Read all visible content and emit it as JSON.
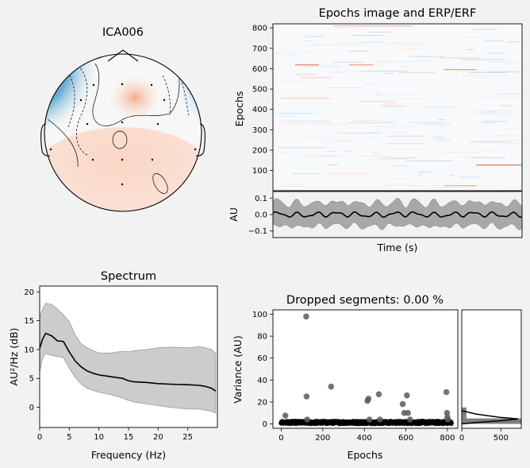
{
  "chart_data": [
    {
      "type": "heatmap",
      "panel": "topomap",
      "title": "ICA006",
      "colormap": "RdBu_r",
      "colors": {
        "negative": "#08306b",
        "positive": "#fcbba1",
        "neutral": "#f7f7f7"
      }
    },
    {
      "type": "heatmap",
      "panel": "epochs-image",
      "title": "Epochs image and ERP/ERF",
      "ylabel": "Epochs",
      "yticks": [
        "100",
        "200",
        "300",
        "400",
        "500",
        "600",
        "700",
        "800"
      ],
      "ylim": [
        1,
        820
      ],
      "grid": false
    },
    {
      "type": "line",
      "panel": "erp",
      "xlabel": "Time (s)",
      "ylabel": "AU",
      "yticks": [
        "0.1",
        "0.0",
        "−0.1"
      ],
      "ylim": [
        -0.14,
        0.14
      ],
      "series_colors": {
        "mean": "#000000",
        "band": "#8c8c8c"
      }
    },
    {
      "type": "area",
      "panel": "spectrum",
      "title": "Spectrum",
      "xlabel": "Frequency (Hz)",
      "ylabel": "AU²/Hz (dB)",
      "xticks": [
        "0",
        "5",
        "10",
        "15",
        "20",
        "25"
      ],
      "yticks": [
        "0",
        "5",
        "10",
        "15",
        "20"
      ],
      "xlim": [
        0,
        30
      ],
      "ylim": [
        -3.5,
        21
      ],
      "x": [
        0,
        0.5,
        1,
        2,
        3,
        4,
        5,
        6,
        7,
        8,
        9,
        10,
        12,
        14,
        15,
        16,
        18,
        20,
        22,
        25,
        27,
        28,
        29,
        29.7
      ],
      "mean": [
        10.2,
        11.8,
        12.8,
        12.4,
        11.5,
        11.4,
        9.6,
        8.0,
        7.0,
        6.3,
        5.9,
        5.6,
        5.3,
        5.0,
        4.6,
        4.4,
        4.3,
        4.1,
        4.0,
        3.9,
        3.8,
        3.6,
        3.3,
        2.8
      ],
      "upper": [
        15.5,
        17.0,
        18.0,
        17.8,
        17.0,
        16.0,
        14.8,
        12.5,
        11.0,
        10.3,
        9.8,
        9.4,
        9.4,
        9.7,
        9.6,
        9.8,
        10.0,
        10.3,
        10.4,
        10.3,
        10.5,
        10.3,
        10.0,
        9.4
      ],
      "lower": [
        6.2,
        8.5,
        9.3,
        9.0,
        8.8,
        8.6,
        6.8,
        5.2,
        4.0,
        3.3,
        2.9,
        2.6,
        2.2,
        1.6,
        1.2,
        0.9,
        0.6,
        0.3,
        0.0,
        -0.3,
        -0.3,
        -0.5,
        -0.7,
        -1.0
      ]
    },
    {
      "type": "scatter",
      "panel": "dropped-segments",
      "title": "Dropped segments: 0.00 %",
      "xlabel": "Epochs",
      "ylabel": "Variance (AU)",
      "xticks": [
        "0",
        "200",
        "400",
        "600",
        "800"
      ],
      "yticks": [
        "0",
        "20",
        "40",
        "60",
        "80",
        "100"
      ],
      "xlim": [
        -40,
        850
      ],
      "ylim": [
        -4,
        104
      ],
      "outliers": [
        [
          20,
          7.5
        ],
        [
          120,
          98
        ],
        [
          122,
          25
        ],
        [
          125,
          4
        ],
        [
          240,
          34
        ],
        [
          415,
          21
        ],
        [
          420,
          23
        ],
        [
          425,
          4
        ],
        [
          470,
          27
        ],
        [
          475,
          4
        ],
        [
          585,
          18
        ],
        [
          592,
          10
        ],
        [
          605,
          26
        ],
        [
          610,
          10
        ],
        [
          620,
          4
        ],
        [
          795,
          29
        ],
        [
          798,
          10
        ],
        [
          800,
          6
        ],
        [
          802,
          4
        ]
      ],
      "baseline_range": [
        0.4,
        2.2
      ],
      "n_epochs": 820
    },
    {
      "type": "bar",
      "panel": "variance-histogram",
      "xticks": [
        "0",
        "500"
      ],
      "xlim": [
        0,
        760
      ],
      "histogram": [
        {
          "bin_low": 0,
          "bin_high": 5,
          "count": 760
        },
        {
          "bin_low": 5,
          "bin_high": 15,
          "count": 60
        }
      ],
      "density_peak": 720
    }
  ]
}
